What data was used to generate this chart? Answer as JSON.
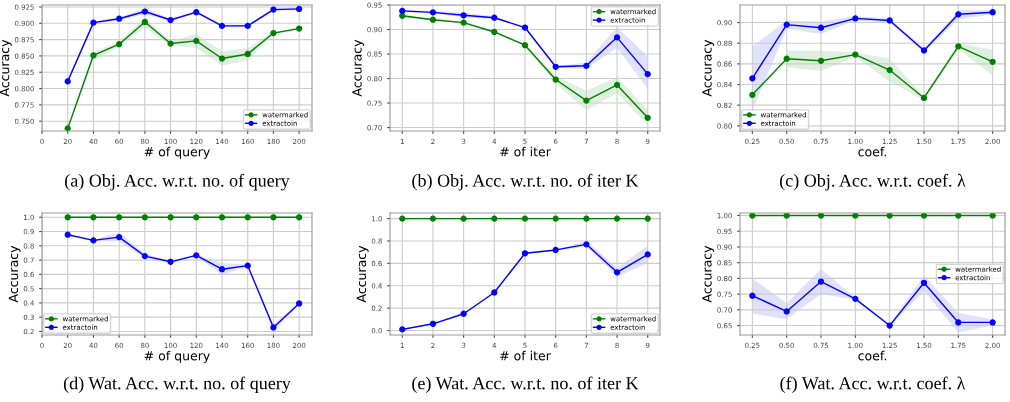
{
  "chart_data": [
    {
      "type": "line",
      "title": "(a) Obj. Acc. w.r.t. no. of query",
      "xlabel": "# of query",
      "ylabel": "Accuracy",
      "x": [
        20,
        40,
        60,
        80,
        100,
        120,
        140,
        160,
        180,
        200
      ],
      "xlim": [
        0,
        210
      ],
      "xticks": [
        0,
        20,
        40,
        60,
        80,
        100,
        120,
        140,
        160,
        180,
        200
      ],
      "ylim": [
        0.735,
        0.928
      ],
      "yticks": [
        {
          "value": 0.75,
          "label": "0.750"
        },
        {
          "value": 0.775,
          "label": "0.775"
        },
        {
          "value": 0.8,
          "label": "0.800"
        },
        {
          "value": 0.825,
          "label": "0.825"
        },
        {
          "value": 0.85,
          "label": "0.850"
        },
        {
          "value": 0.875,
          "label": "0.875"
        },
        {
          "value": 0.9,
          "label": "0.900"
        },
        {
          "value": 0.925,
          "label": "0.925"
        }
      ],
      "grid": true,
      "legend": "lower right",
      "marker": "circle",
      "line_style": "solid",
      "series": [
        {
          "name": "watermarked",
          "color": "#008000",
          "values": [
            0.739,
            0.851,
            0.868,
            0.902,
            0.869,
            0.873,
            0.846,
            0.853,
            0.885,
            0.892
          ],
          "lower": [
            0.737,
            0.843,
            0.864,
            0.893,
            0.866,
            0.862,
            0.835,
            0.843,
            0.883,
            0.89
          ],
          "upper": [
            0.741,
            0.856,
            0.872,
            0.909,
            0.872,
            0.884,
            0.857,
            0.862,
            0.887,
            0.894
          ]
        },
        {
          "name": "extractoin",
          "color": "#0000ff",
          "values": [
            0.811,
            0.901,
            0.907,
            0.918,
            0.905,
            0.917,
            0.896,
            0.896,
            0.921,
            0.922
          ],
          "lower": [
            0.809,
            0.899,
            0.905,
            0.914,
            0.903,
            0.915,
            0.894,
            0.894,
            0.919,
            0.92
          ],
          "upper": [
            0.813,
            0.903,
            0.909,
            0.923,
            0.907,
            0.919,
            0.898,
            0.898,
            0.923,
            0.924
          ]
        }
      ]
    },
    {
      "type": "line",
      "title": "(b) Obj. Acc. w.r.t. no. of iter K",
      "xlabel": "# of iter",
      "ylabel": "Accuracy",
      "x": [
        1,
        2,
        3,
        4,
        5,
        6,
        7,
        8,
        9
      ],
      "xlim": [
        0.6,
        9.4
      ],
      "xticks": [
        1,
        2,
        3,
        4,
        5,
        6,
        7,
        8,
        9
      ],
      "ylim": [
        0.693,
        0.95
      ],
      "yticks": [
        {
          "value": 0.7,
          "label": "0.70"
        },
        {
          "value": 0.75,
          "label": "0.75"
        },
        {
          "value": 0.8,
          "label": "0.80"
        },
        {
          "value": 0.85,
          "label": "0.85"
        },
        {
          "value": 0.9,
          "label": "0.90"
        },
        {
          "value": 0.95,
          "label": "0.95"
        }
      ],
      "grid": true,
      "legend": "upper right",
      "marker": "circle",
      "line_style": "solid",
      "series": [
        {
          "name": "watermarked",
          "color": "#008000",
          "values": [
            0.928,
            0.92,
            0.914,
            0.895,
            0.868,
            0.798,
            0.755,
            0.787,
            0.72
          ],
          "lower": [
            0.926,
            0.918,
            0.912,
            0.893,
            0.866,
            0.79,
            0.735,
            0.77,
            0.705
          ],
          "upper": [
            0.93,
            0.922,
            0.916,
            0.897,
            0.87,
            0.806,
            0.775,
            0.803,
            0.735
          ]
        },
        {
          "name": "extractoin",
          "color": "#0000ff",
          "values": [
            0.938,
            0.935,
            0.929,
            0.924,
            0.904,
            0.824,
            0.826,
            0.884,
            0.809
          ],
          "lower": [
            0.936,
            0.932,
            0.925,
            0.921,
            0.902,
            0.822,
            0.82,
            0.863,
            0.778
          ],
          "upper": [
            0.94,
            0.938,
            0.934,
            0.927,
            0.906,
            0.826,
            0.832,
            0.905,
            0.845
          ]
        }
      ]
    },
    {
      "type": "line",
      "title": "(c) Obj. Acc. w.r.t. coef. λ",
      "xlabel": "coef.",
      "ylabel": "Accuracy",
      "x": [
        0.25,
        0.5,
        0.75,
        1.0,
        1.25,
        1.5,
        1.75,
        2.0
      ],
      "xlim": [
        0.16,
        2.09
      ],
      "xticks": [
        {
          "value": 0.25,
          "label": "0.25"
        },
        {
          "value": 0.5,
          "label": "0.50"
        },
        {
          "value": 0.75,
          "label": "0.75"
        },
        {
          "value": 1.0,
          "label": "1.00"
        },
        {
          "value": 1.25,
          "label": "1.25"
        },
        {
          "value": 1.5,
          "label": "1.50"
        },
        {
          "value": 1.75,
          "label": "1.75"
        },
        {
          "value": 2.0,
          "label": "2.00"
        }
      ],
      "ylim": [
        0.795,
        0.917
      ],
      "yticks": [
        {
          "value": 0.8,
          "label": "0.80"
        },
        {
          "value": 0.82,
          "label": "0.82"
        },
        {
          "value": 0.84,
          "label": "0.84"
        },
        {
          "value": 0.86,
          "label": "0.86"
        },
        {
          "value": 0.88,
          "label": "0.88"
        },
        {
          "value": 0.9,
          "label": "0.90"
        }
      ],
      "grid": true,
      "legend": "lower left",
      "marker": "circle",
      "line_style": "solid",
      "series": [
        {
          "name": "watermarked",
          "color": "#008000",
          "values": [
            0.83,
            0.865,
            0.863,
            0.869,
            0.854,
            0.827,
            0.877,
            0.862
          ],
          "lower": [
            null,
            0.857,
            0.853,
            0.867,
            0.843,
            0.825,
            0.874,
            0.849
          ],
          "upper": [
            null,
            0.873,
            0.873,
            0.871,
            0.865,
            0.829,
            0.88,
            0.874
          ]
        },
        {
          "name": "extractoin",
          "color": "#0000ff",
          "values": [
            0.846,
            0.898,
            0.895,
            0.904,
            0.902,
            0.873,
            0.908,
            0.91
          ],
          "lower": [
            0.815,
            0.894,
            0.889,
            0.902,
            0.9,
            0.871,
            0.903,
            0.908
          ],
          "upper": [
            0.877,
            0.902,
            0.901,
            0.906,
            0.904,
            0.875,
            0.912,
            0.912
          ]
        }
      ]
    },
    {
      "type": "line",
      "title": "(d) Wat. Acc. w.r.t. no. of query",
      "xlabel": "# of query",
      "ylabel": "Accuracy",
      "x": [
        20,
        40,
        60,
        80,
        100,
        120,
        140,
        160,
        180,
        200
      ],
      "xlim": [
        0,
        210
      ],
      "xticks": [
        0,
        20,
        40,
        60,
        80,
        100,
        120,
        140,
        160,
        180,
        200
      ],
      "ylim": [
        0.175,
        1.03
      ],
      "yticks": [
        0.2,
        0.3,
        0.4,
        0.5,
        0.6,
        0.7,
        0.8,
        0.9,
        {
          "value": 1.0,
          "label": "1.0"
        }
      ],
      "grid": true,
      "legend": "lower left",
      "marker": "circle",
      "line_style": "solid",
      "series": [
        {
          "name": "watermarked",
          "color": "#008000",
          "values": [
            1.0,
            1.0,
            1.0,
            1.0,
            1.0,
            1.0,
            1.0,
            1.0,
            1.0,
            1.0
          ]
        },
        {
          "name": "extractoin",
          "color": "#0000ff",
          "values": [
            0.878,
            0.838,
            0.861,
            0.728,
            0.688,
            0.733,
            0.636,
            0.661,
            0.228,
            0.396
          ],
          "lower": [
            0.87,
            0.832,
            0.83,
            0.715,
            0.68,
            0.727,
            0.595,
            0.655,
            0.205,
            0.385
          ],
          "upper": [
            0.886,
            0.845,
            0.893,
            0.745,
            0.695,
            0.74,
            0.68,
            0.667,
            0.25,
            0.405
          ]
        }
      ]
    },
    {
      "type": "line",
      "title": "(e) Wat. Acc. w.r.t. no. of iter K",
      "xlabel": "# of iter",
      "ylabel": "Accuracy",
      "x": [
        1,
        2,
        3,
        4,
        5,
        6,
        7,
        8,
        9
      ],
      "xlim": [
        0.6,
        9.4
      ],
      "xticks": [
        1,
        2,
        3,
        4,
        5,
        6,
        7,
        8,
        9
      ],
      "ylim": [
        -0.04,
        1.05
      ],
      "yticks": [
        {
          "value": 0,
          "label": "0.0"
        },
        0.2,
        0.4,
        0.6,
        0.8,
        {
          "value": 1.0,
          "label": "1.0"
        }
      ],
      "grid": true,
      "legend": "lower right",
      "marker": "circle",
      "line_style": "solid",
      "series": [
        {
          "name": "watermarked",
          "color": "#008000",
          "values": [
            1.0,
            1.0,
            1.0,
            1.0,
            1.0,
            1.0,
            1.0,
            1.0,
            1.0
          ]
        },
        {
          "name": "extractoin",
          "color": "#0000ff",
          "values": [
            0.01,
            0.06,
            0.15,
            0.34,
            0.69,
            0.72,
            0.77,
            0.52,
            0.68
          ],
          "lower": [
            0.01,
            0.05,
            0.14,
            0.33,
            0.68,
            0.71,
            0.75,
            0.48,
            0.6
          ],
          "upper": [
            0.02,
            0.06,
            0.15,
            0.34,
            0.69,
            0.72,
            0.8,
            0.56,
            0.76
          ]
        }
      ]
    },
    {
      "type": "line",
      "title": "(f) Wat. Acc. w.r.t. coef. λ",
      "xlabel": "coef.",
      "ylabel": "Accuracy",
      "x": [
        0.25,
        0.5,
        0.75,
        1.0,
        1.25,
        1.5,
        1.75,
        2.0
      ],
      "xlim": [
        0.16,
        2.09
      ],
      "xticks": [
        {
          "value": 0.25,
          "label": "0.25"
        },
        {
          "value": 0.5,
          "label": "0.50"
        },
        {
          "value": 0.75,
          "label": "0.75"
        },
        {
          "value": 1.0,
          "label": "1.00"
        },
        {
          "value": 1.25,
          "label": "1.25"
        },
        {
          "value": 1.5,
          "label": "1.50"
        },
        {
          "value": 1.75,
          "label": "1.75"
        },
        {
          "value": 2.0,
          "label": "2.00"
        }
      ],
      "ylim": [
        0.62,
        1.008
      ],
      "yticks": [
        0.65,
        {
          "value": 0.7,
          "label": "0.70"
        },
        0.75,
        {
          "value": 0.8,
          "label": "0.80"
        },
        0.85,
        {
          "value": 0.9,
          "label": "0.90"
        },
        0.95,
        {
          "value": 1.0,
          "label": "1.00"
        }
      ],
      "grid": true,
      "legend": "center right",
      "marker": "circle",
      "line_style": "solid",
      "series": [
        {
          "name": "watermarked",
          "color": "#008000",
          "values": [
            1.0,
            1.0,
            1.0,
            1.0,
            1.0,
            1.0,
            1.0,
            1.0
          ]
        },
        {
          "name": "extractoin",
          "color": "#0000ff",
          "values": [
            0.745,
            0.695,
            0.79,
            0.735,
            0.65,
            0.786,
            0.66,
            0.66
          ],
          "lower": [
            0.688,
            0.67,
            0.75,
            0.732,
            0.648,
            0.76,
            0.628,
            0.65
          ],
          "upper": [
            0.8,
            0.722,
            0.83,
            0.738,
            0.655,
            0.81,
            0.69,
            0.67
          ]
        }
      ]
    }
  ]
}
